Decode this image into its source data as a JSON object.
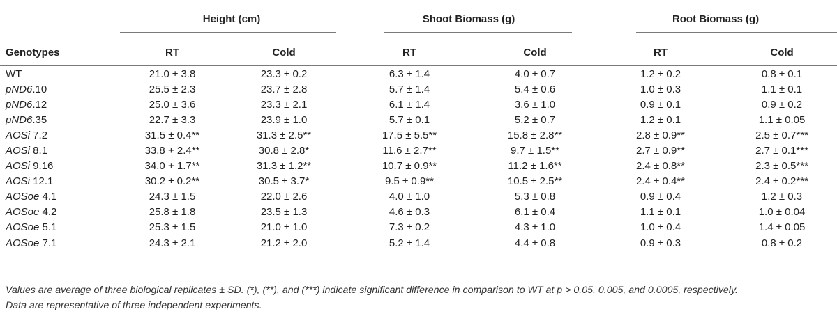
{
  "table": {
    "groups": [
      "Height (cm)",
      "Shoot Biomass (g)",
      "Root Biomass (g)"
    ],
    "row_header": "Genotypes",
    "subheaders": [
      "RT",
      "Cold",
      "RT",
      "Cold",
      "RT",
      "Cold"
    ],
    "rows": [
      {
        "gname": "",
        "gsuffix": "WT",
        "cells": [
          "21.0 ± 3.8",
          "23.3 ± 0.2",
          "6.3 ± 1.4",
          "4.0 ± 0.7",
          "1.2 ± 0.2",
          "0.8 ± 0.1"
        ]
      },
      {
        "gname": "pND6",
        "gsuffix": ".10",
        "cells": [
          "25.5 ± 2.3",
          "23.7 ± 2.8",
          "5.7 ± 1.4",
          "5.4 ± 0.6",
          "1.0 ± 0.3",
          "1.1 ± 0.1"
        ]
      },
      {
        "gname": "pND6",
        "gsuffix": ".12",
        "cells": [
          "25.0 ± 3.6",
          "23.3 ± 2.1",
          "6.1 ± 1.4",
          "3.6 ± 1.0",
          "0.9 ± 0.1",
          "0.9 ± 0.2"
        ]
      },
      {
        "gname": "pND6",
        "gsuffix": ".35",
        "cells": [
          "22.7 ± 3.3",
          "23.9 ± 1.0",
          "5.7 ± 0.1",
          "5.2 ± 0.7",
          "1.2 ± 0.1",
          "1.1 ± 0.05"
        ]
      },
      {
        "gname": "AOSi",
        "gsuffix": " 7.2",
        "cells": [
          "31.5 ± 0.4**",
          "31.3 ± 2.5**",
          "17.5 ± 5.5**",
          "15.8 ± 2.8**",
          "2.8 ± 0.9**",
          "2.5 ± 0.7***"
        ]
      },
      {
        "gname": "AOSi",
        "gsuffix": " 8.1",
        "cells": [
          "33.8 + 2.4**",
          "30.8 ± 2.8*",
          "11.6 ± 2.7**",
          "9.7 ± 1.5**",
          "2.7 ± 0.9**",
          "2.7 ± 0.1***"
        ]
      },
      {
        "gname": "AOSi",
        "gsuffix": " 9.16",
        "cells": [
          "34.0 + 1.7**",
          "31.3 ± 1.2**",
          "10.7 ± 0.9**",
          "11.2 ± 1.6**",
          "2.4 ± 0.8**",
          "2.3 ± 0.5***"
        ]
      },
      {
        "gname": "AOSi",
        "gsuffix": " 12.1",
        "cells": [
          "30.2 ± 0.2**",
          "30.5 ± 3.7*",
          "9.5 ± 0.9**",
          "10.5 ± 2.5**",
          "2.4 ± 0.4**",
          "2.4 ± 0.2***"
        ]
      },
      {
        "gname": "AOSoe",
        "gsuffix": " 4.1",
        "cells": [
          "24.3 ± 1.5",
          "22.0 ± 2.6",
          "4.0 ± 1.0",
          "5.3 ± 0.8",
          "0.9 ± 0.4",
          "1.2 ± 0.3"
        ]
      },
      {
        "gname": "AOSoe",
        "gsuffix": " 4.2",
        "cells": [
          "25.8 ± 1.8",
          "23.5 ± 1.3",
          "4.6 ± 0.3",
          "6.1 ± 0.4",
          "1.1 ± 0.1",
          "1.0 ± 0.04"
        ]
      },
      {
        "gname": "AOSoe",
        "gsuffix": " 5.1",
        "cells": [
          "25.3 ± 1.5",
          "21.0 ± 1.0",
          "7.3 ± 0.2",
          "4.3 ± 1.0",
          "1.0 ± 0.4",
          "1.4 ± 0.05"
        ]
      },
      {
        "gname": "AOSoe",
        "gsuffix": " 7.1",
        "cells": [
          "24.3 ± 2.1",
          "21.2 ± 2.0",
          "5.2 ± 1.4",
          "4.4 ± 0.8",
          "0.9 ± 0.3",
          "0.8 ± 0.2"
        ]
      }
    ]
  },
  "footnote": {
    "line1": "Values are average of three biological replicates ± SD. (*), (**), and (***) indicate significant difference in comparison to WT at p > 0.05, 0.005, and 0.0005, respectively.",
    "line2": "Data are representative of three independent experiments."
  }
}
